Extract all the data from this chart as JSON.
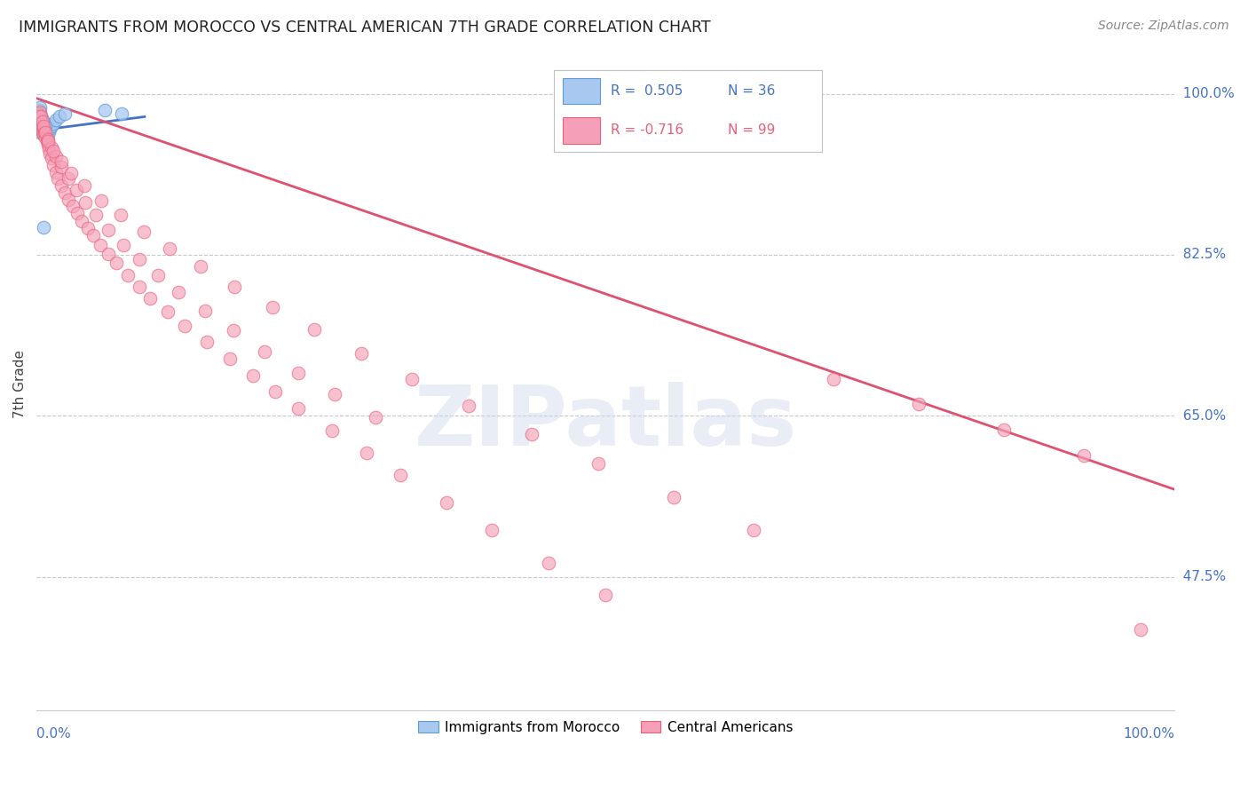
{
  "title": "IMMIGRANTS FROM MOROCCO VS CENTRAL AMERICAN 7TH GRADE CORRELATION CHART",
  "source": "Source: ZipAtlas.com",
  "ylabel": "7th Grade",
  "y_tick_labels": [
    "100.0%",
    "82.5%",
    "65.0%",
    "47.5%"
  ],
  "y_tick_values": [
    1.0,
    0.825,
    0.65,
    0.475
  ],
  "x_range": [
    0.0,
    1.0
  ],
  "y_range": [
    0.33,
    1.04
  ],
  "background_color": "#ffffff",
  "watermark": "ZIPatlas",
  "blue_color": "#a8c8f0",
  "pink_color": "#f5a0b8",
  "blue_edge_color": "#5b9bd5",
  "pink_edge_color": "#e8607a",
  "blue_line_color": "#4472c4",
  "pink_line_color": "#e05070",
  "grid_color": "#c8c8c8",
  "axis_label_color": "#4472c4",
  "title_color": "#222222",
  "morocco_x": [
    0.001,
    0.001,
    0.002,
    0.002,
    0.002,
    0.003,
    0.003,
    0.003,
    0.004,
    0.004,
    0.004,
    0.005,
    0.005,
    0.005,
    0.006,
    0.006,
    0.007,
    0.007,
    0.008,
    0.008,
    0.009,
    0.009,
    0.01,
    0.011,
    0.012,
    0.013,
    0.015,
    0.017,
    0.02,
    0.025,
    0.06,
    0.075,
    0.006,
    0.008,
    0.004,
    0.003
  ],
  "morocco_y": [
    0.98,
    0.975,
    0.982,
    0.978,
    0.972,
    0.985,
    0.978,
    0.97,
    0.975,
    0.968,
    0.962,
    0.972,
    0.965,
    0.958,
    0.968,
    0.96,
    0.965,
    0.958,
    0.962,
    0.955,
    0.958,
    0.952,
    0.96,
    0.958,
    0.962,
    0.965,
    0.968,
    0.972,
    0.975,
    0.978,
    0.982,
    0.978,
    0.855,
    0.965,
    0.962,
    0.958
  ],
  "ca_x": [
    0.001,
    0.001,
    0.002,
    0.002,
    0.003,
    0.003,
    0.004,
    0.004,
    0.005,
    0.005,
    0.006,
    0.006,
    0.007,
    0.008,
    0.009,
    0.01,
    0.011,
    0.012,
    0.013,
    0.015,
    0.017,
    0.019,
    0.022,
    0.025,
    0.028,
    0.032,
    0.036,
    0.04,
    0.045,
    0.05,
    0.056,
    0.063,
    0.07,
    0.08,
    0.09,
    0.1,
    0.115,
    0.13,
    0.15,
    0.17,
    0.19,
    0.21,
    0.23,
    0.26,
    0.29,
    0.32,
    0.36,
    0.4,
    0.45,
    0.5,
    0.003,
    0.004,
    0.005,
    0.006,
    0.008,
    0.01,
    0.013,
    0.017,
    0.022,
    0.028,
    0.035,
    0.043,
    0.052,
    0.063,
    0.076,
    0.09,
    0.107,
    0.125,
    0.148,
    0.173,
    0.2,
    0.23,
    0.262,
    0.298,
    0.01,
    0.015,
    0.022,
    0.03,
    0.042,
    0.057,
    0.074,
    0.094,
    0.117,
    0.144,
    0.174,
    0.207,
    0.244,
    0.285,
    0.33,
    0.38,
    0.435,
    0.494,
    0.56,
    0.63,
    0.7,
    0.775,
    0.85,
    0.92,
    0.97
  ],
  "ca_y": [
    0.978,
    0.972,
    0.975,
    0.968,
    0.972,
    0.965,
    0.968,
    0.96,
    0.965,
    0.958,
    0.962,
    0.955,
    0.958,
    0.952,
    0.948,
    0.945,
    0.94,
    0.935,
    0.93,
    0.922,
    0.915,
    0.908,
    0.9,
    0.892,
    0.885,
    0.878,
    0.87,
    0.862,
    0.854,
    0.846,
    0.836,
    0.826,
    0.816,
    0.803,
    0.79,
    0.778,
    0.763,
    0.748,
    0.73,
    0.712,
    0.694,
    0.676,
    0.658,
    0.634,
    0.61,
    0.586,
    0.556,
    0.526,
    0.49,
    0.455,
    0.98,
    0.975,
    0.97,
    0.965,
    0.958,
    0.95,
    0.942,
    0.932,
    0.92,
    0.908,
    0.895,
    0.882,
    0.868,
    0.852,
    0.836,
    0.82,
    0.803,
    0.784,
    0.764,
    0.743,
    0.72,
    0.697,
    0.673,
    0.648,
    0.948,
    0.938,
    0.926,
    0.914,
    0.9,
    0.884,
    0.868,
    0.85,
    0.832,
    0.812,
    0.79,
    0.768,
    0.744,
    0.718,
    0.69,
    0.661,
    0.63,
    0.598,
    0.562,
    0.526,
    0.69,
    0.663,
    0.635,
    0.607,
    0.418
  ],
  "morocco_trendline_x": [
    0.001,
    0.095
  ],
  "morocco_trendline_y": [
    0.96,
    0.975
  ],
  "ca_trendline_x": [
    0.0,
    1.0
  ],
  "ca_trendline_y": [
    0.995,
    0.57
  ]
}
